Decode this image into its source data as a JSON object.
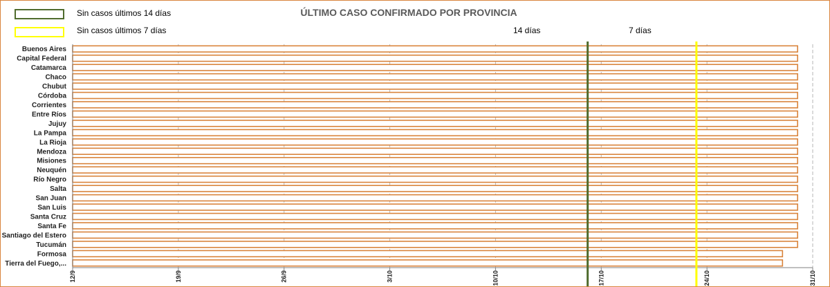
{
  "legend": {
    "items": [
      {
        "label": "Sin casos últimos 14 días",
        "color": "#4f6b2d"
      },
      {
        "label": "Sin casos últimos 7 días",
        "color": "#ffff00"
      }
    ]
  },
  "chart_data": {
    "type": "bar",
    "orientation": "horizontal",
    "title": "ÚLTIMO CASO CONFIRMADO POR PROVINCIA",
    "categories": [
      "Buenos Aires",
      "Capital Federal",
      "Catamarca",
      "Chaco",
      "Chubut",
      "Córdoba",
      "Corrientes",
      "Entre Ríos",
      "Jujuy",
      "La Pampa",
      "La Rioja",
      "Mendoza",
      "Misiones",
      "Neuquén",
      "Río Negro",
      "Salta",
      "San Juan",
      "San Luis",
      "Santa Cruz",
      "Santa Fe",
      "Santiago del Estero",
      "Tucumán",
      "Formosa",
      "Tierra del Fuego,..."
    ],
    "series": [
      {
        "start_day": [
          0,
          0,
          0,
          0,
          0,
          0,
          0,
          0,
          0,
          0,
          0,
          0,
          0,
          0,
          0,
          0,
          0,
          0,
          0,
          0,
          0,
          0,
          0,
          0
        ],
        "end_day": [
          48,
          48,
          48,
          48,
          48,
          48,
          48,
          48,
          48,
          48,
          48,
          48,
          48,
          48,
          48,
          48,
          48,
          48,
          48,
          48,
          48,
          48,
          47,
          47
        ]
      }
    ],
    "bar_color": "#d9843c",
    "x_axis": {
      "start_label": "12/9",
      "range_days": [
        0,
        49
      ],
      "tick_days": [
        0,
        7,
        14,
        21,
        28,
        35,
        42,
        49
      ],
      "tick_labels": [
        "12/9",
        "19/9",
        "26/9",
        "3/10",
        "10/10",
        "17/10",
        "24/10",
        "31/10"
      ]
    },
    "reference_lines": [
      {
        "label": "14 días",
        "day": 34.1,
        "color": "#4f6b2d"
      },
      {
        "label": "7 días",
        "day": 41.3,
        "color": "#ffff00"
      }
    ],
    "grid": "vertical-dashed"
  }
}
